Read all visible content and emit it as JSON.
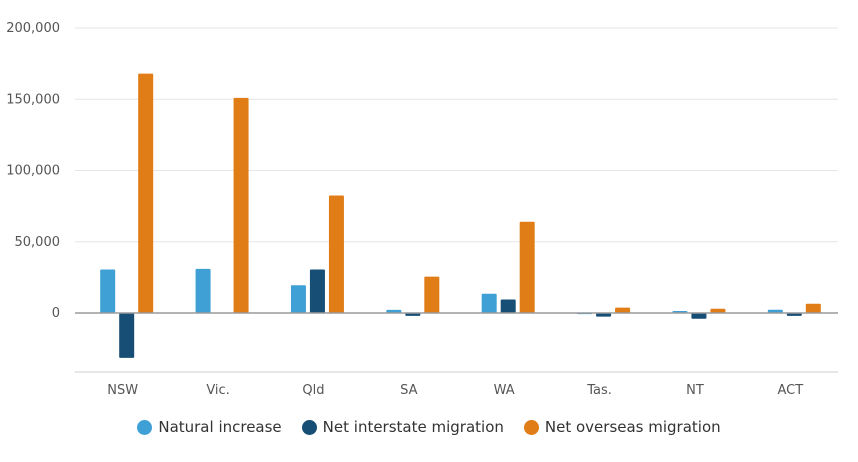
{
  "chart_data": {
    "type": "bar",
    "categories": [
      "NSW",
      "Vic.",
      "Qld",
      "SA",
      "WA",
      "Tas.",
      "NT",
      "ACT"
    ],
    "series": [
      {
        "name": "Natural increase",
        "color": "#3fa0d6",
        "values": [
          30500,
          31000,
          19500,
          2200,
          13500,
          300,
          1400,
          2300
        ]
      },
      {
        "name": "Net interstate migration",
        "color": "#164e75",
        "values": [
          -31500,
          0,
          30500,
          -2000,
          9500,
          -2500,
          -4000,
          -2000
        ]
      },
      {
        "name": "Net overseas migration",
        "color": "#e07d16",
        "values": [
          168000,
          151000,
          82500,
          25500,
          64000,
          3800,
          3000,
          6500
        ]
      }
    ],
    "y_ticks": [
      "200,000",
      "150,000",
      "100,000",
      "50,000",
      "0"
    ],
    "y_tick_values": [
      200000,
      150000,
      100000,
      50000,
      0
    ],
    "ylim": [
      -37000,
      200000
    ],
    "grid": true,
    "legend_position": "bottom"
  }
}
